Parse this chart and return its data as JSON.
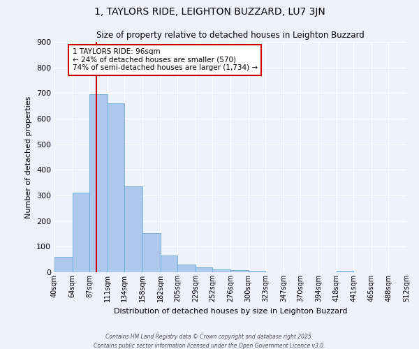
{
  "title": "1, TAYLORS RIDE, LEIGHTON BUZZARD, LU7 3JN",
  "subtitle": "Size of property relative to detached houses in Leighton Buzzard",
  "xlabel": "Distribution of detached houses by size in Leighton Buzzard",
  "ylabel": "Number of detached properties",
  "bar_values": [
    60,
    312,
    695,
    660,
    335,
    153,
    66,
    30,
    18,
    12,
    8,
    5,
    0,
    0,
    0,
    0,
    5,
    0,
    0,
    0
  ],
  "bin_labels": [
    "40sqm",
    "64sqm",
    "87sqm",
    "111sqm",
    "134sqm",
    "158sqm",
    "182sqm",
    "205sqm",
    "229sqm",
    "252sqm",
    "276sqm",
    "300sqm",
    "323sqm",
    "347sqm",
    "370sqm",
    "394sqm",
    "418sqm",
    "441sqm",
    "465sqm",
    "488sqm",
    "512sqm"
  ],
  "bin_edges": [
    40,
    64,
    87,
    111,
    134,
    158,
    182,
    205,
    229,
    252,
    276,
    300,
    323,
    347,
    370,
    394,
    418,
    441,
    465,
    488,
    512
  ],
  "bar_color": "#adc8ea",
  "bar_edge_color": "#6aaad4",
  "vline_x": 96,
  "vline_color": "#cc0000",
  "annotation_title": "1 TAYLORS RIDE: 96sqm",
  "annotation_line1": "← 24% of detached houses are smaller (570)",
  "annotation_line2": "74% of semi-detached houses are larger (1,734) →",
  "annotation_box_edgecolor": "#cc0000",
  "annotation_box_facecolor": "#ffffff",
  "ylim": [
    0,
    900
  ],
  "yticks": [
    0,
    100,
    200,
    300,
    400,
    500,
    600,
    700,
    800,
    900
  ],
  "footer_line1": "Contains HM Land Registry data © Crown copyright and database right 2025.",
  "footer_line2": "Contains public sector information licensed under the Open Government Licence v3.0.",
  "background_color": "#eef2fb",
  "grid_color": "#ffffff"
}
